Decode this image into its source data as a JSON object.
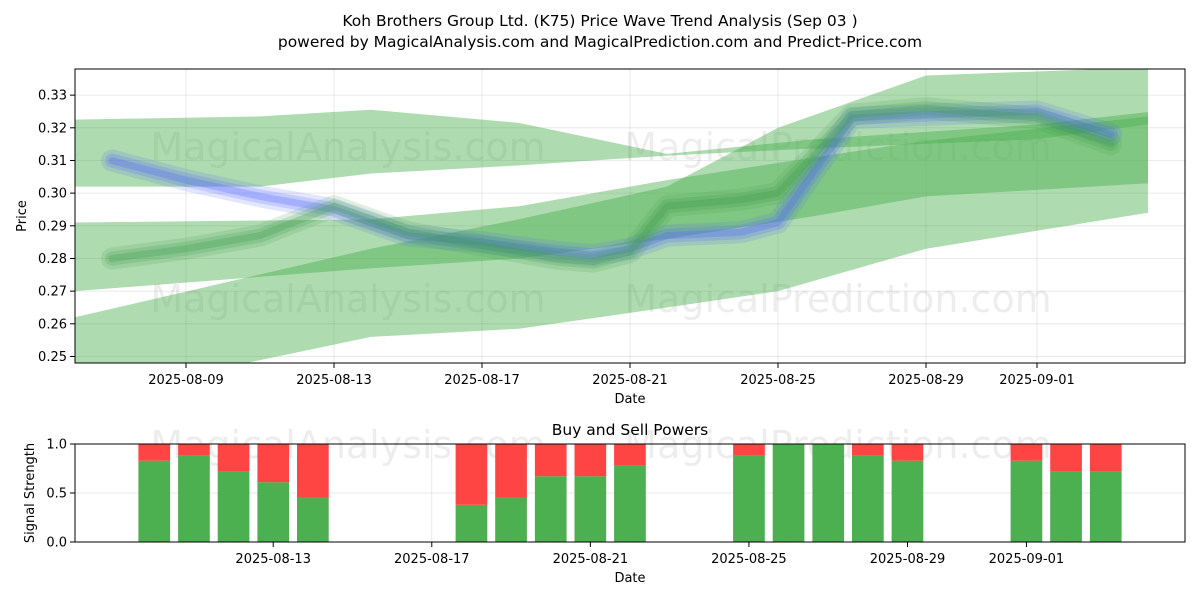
{
  "header": {
    "title": "Koh Brothers Group Ltd. (K75) Price Wave Trend Analysis (Sep 03 )",
    "subtitle": "powered by MagicalAnalysis.com and MagicalPrediction.com and Predict-Price.com"
  },
  "watermarks": [
    "MagicalAnalysis.com",
    "MagicalPrediction.com"
  ],
  "chart_data": [
    {
      "type": "line",
      "title": "",
      "xlabel": "Date",
      "ylabel": "Price",
      "x_range": [
        "2025-08-06",
        "2025-09-05"
      ],
      "ylim": [
        0.248,
        0.338
      ],
      "x_ticks": [
        "2025-08-09",
        "2025-08-13",
        "2025-08-17",
        "2025-08-21",
        "2025-08-25",
        "2025-08-29",
        "2025-09-01"
      ],
      "y_ticks": [
        0.25,
        0.26,
        0.27,
        0.28,
        0.29,
        0.3,
        0.31,
        0.32,
        0.33
      ],
      "grid": true,
      "colors": {
        "band": "#4caf50",
        "wave": "#5064ff"
      },
      "bands": [
        {
          "upper": [
            [
              0.3225,
              0.3235,
              0.3255,
              0.3215,
              0.312,
              0.3165,
              0.321,
              0.3248
            ],
            [
              0.302,
              0.302,
              0.306,
              0.3085,
              0.3115,
              0.3137,
              0.3165,
              0.321
            ]
          ],
          "x": [
            "2025-08-06",
            "2025-08-11",
            "2025-08-14",
            "2025-08-18",
            "2025-08-22",
            "2025-08-26",
            "2025-09-01",
            "2025-09-04"
          ]
        },
        {
          "x": [
            "2025-08-06",
            "2025-08-14",
            "2025-08-18",
            "2025-08-22",
            "2025-08-26",
            "2025-08-29",
            "2025-09-04"
          ],
          "upper": [
            0.291,
            0.292,
            0.296,
            0.304,
            0.311,
            0.316,
            0.3235
          ],
          "lower": [
            0.27,
            0.277,
            0.28,
            0.286,
            0.293,
            0.299,
            0.303
          ]
        },
        {
          "x": [
            "2025-08-06",
            "2025-08-14",
            "2025-08-18",
            "2025-08-22",
            "2025-08-25",
            "2025-08-29",
            "2025-09-04"
          ],
          "upper": [
            0.262,
            0.283,
            0.292,
            0.302,
            0.32,
            0.336,
            0.3385
          ],
          "lower": [
            0.237,
            0.256,
            0.2585,
            0.265,
            0.27,
            0.283,
            0.294
          ]
        }
      ],
      "series": [
        {
          "x": [
            "2025-08-07",
            "2025-08-09",
            "2025-08-11",
            "2025-08-13",
            "2025-08-15",
            "2025-08-17",
            "2025-08-19",
            "2025-08-20",
            "2025-08-21",
            "2025-08-22",
            "2025-08-24",
            "2025-08-25",
            "2025-08-27",
            "2025-08-29",
            "2025-09-01",
            "2025-09-03"
          ],
          "values": [
            0.31,
            0.304,
            0.299,
            0.295,
            0.287,
            0.285,
            0.282,
            0.281,
            0.283,
            0.287,
            0.288,
            0.291,
            0.323,
            0.324,
            0.325,
            0.318
          ]
        },
        {
          "x": [
            "2025-08-07",
            "2025-08-09",
            "2025-08-11",
            "2025-08-13",
            "2025-08-15",
            "2025-08-17",
            "2025-08-19",
            "2025-08-20",
            "2025-08-21",
            "2025-08-22",
            "2025-08-24",
            "2025-08-25",
            "2025-08-27",
            "2025-08-29",
            "2025-09-01",
            "2025-09-03"
          ],
          "values": [
            0.28,
            0.283,
            0.287,
            0.296,
            0.288,
            0.284,
            0.28,
            0.279,
            0.282,
            0.296,
            0.298,
            0.3,
            0.324,
            0.326,
            0.323,
            0.315
          ]
        }
      ]
    },
    {
      "type": "bar",
      "title": "Buy and Sell Powers",
      "xlabel": "Date",
      "ylabel": "Signal Strength",
      "x_range": [
        "2025-08-08",
        "2025-09-05"
      ],
      "ylim": [
        0,
        1.0
      ],
      "x_ticks": [
        "2025-08-13",
        "2025-08-17",
        "2025-08-21",
        "2025-08-25",
        "2025-08-29",
        "2025-09-01"
      ],
      "y_ticks": [
        "0.0",
        "0.5",
        "1.0"
      ],
      "grid": true,
      "colors": {
        "buy": "#4caf50",
        "sell": "#ff4444"
      },
      "categories": [
        "2025-08-10",
        "2025-08-11",
        "2025-08-12",
        "2025-08-13",
        "2025-08-14",
        "2025-08-18",
        "2025-08-19",
        "2025-08-20",
        "2025-08-21",
        "2025-08-22",
        "2025-08-25",
        "2025-08-26",
        "2025-08-27",
        "2025-08-28",
        "2025-08-29",
        "2025-09-01",
        "2025-09-02",
        "2025-09-03"
      ],
      "buy": [
        0.83,
        0.88,
        0.72,
        0.61,
        0.45,
        0.38,
        0.45,
        0.67,
        0.67,
        0.78,
        0.88,
        1.0,
        1.0,
        0.88,
        0.83,
        0.83,
        0.72,
        0.72
      ],
      "sell": [
        0.17,
        0.12,
        0.28,
        0.39,
        0.55,
        0.62,
        0.55,
        0.33,
        0.33,
        0.22,
        0.12,
        0.0,
        0.0,
        0.12,
        0.17,
        0.17,
        0.28,
        0.28
      ]
    }
  ]
}
